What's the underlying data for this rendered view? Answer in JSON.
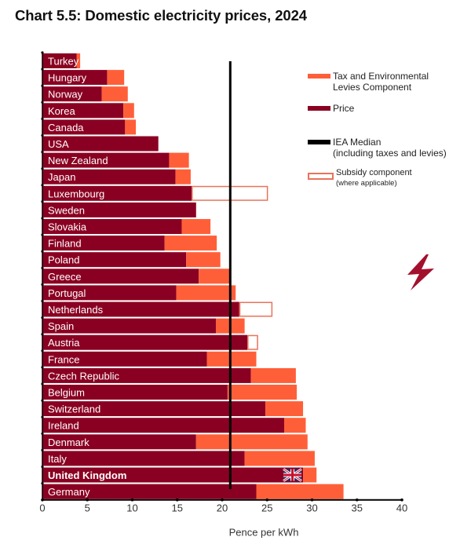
{
  "title": "Chart 5.5: Domestic electricity prices, 2024",
  "colors": {
    "price": "#8a0022",
    "tax": "#ff5f38",
    "subsidy_border": "#e8735a",
    "median": "#000000",
    "bolt": "#a3102e"
  },
  "legend": {
    "tax": "Tax and Environmental",
    "tax_line2": "Levies Component",
    "price": "Price",
    "median": "IEA Median",
    "median_line2": "(including taxes and levies)",
    "subsidy": "Subsidy component",
    "subsidy_line2": "(where applicable)"
  },
  "icons": {
    "bolt": "lightning-bolt-icon",
    "flag": "uk-flag-icon"
  },
  "chart_data": {
    "type": "bar",
    "orientation": "horizontal",
    "stacked": true,
    "title": "Chart 5.5: Domestic electricity prices, 2024",
    "xlabel": "Pence per kWh",
    "ylabel": "",
    "xlim": [
      0,
      40
    ],
    "xticks": [
      0,
      5,
      10,
      15,
      20,
      25,
      30,
      35,
      40
    ],
    "grid": false,
    "legend_position": "top-right",
    "median": 20.9,
    "median_label": "IEA Median (including taxes and levies)",
    "highlight": "United Kingdom",
    "categories": [
      "Turkey",
      "Hungary",
      "Norway",
      "Korea",
      "Canada",
      "USA",
      "New Zealand",
      "Japan",
      "Luxembourg",
      "Sweden",
      "Slovakia",
      "Finland",
      "Poland",
      "Greece",
      "Portugal",
      "Netherlands",
      "Spain",
      "Austria",
      "France",
      "Czech Republic",
      "Belgium",
      "Switzerland",
      "Ireland",
      "Denmark",
      "Italy",
      "United Kingdom",
      "Germany"
    ],
    "series": [
      {
        "name": "Price",
        "values": [
          3.8,
          7.2,
          6.6,
          9.0,
          9.2,
          12.9,
          14.1,
          14.8,
          16.6,
          17.1,
          15.5,
          13.6,
          16.0,
          17.4,
          14.9,
          21.9,
          19.3,
          22.8,
          18.3,
          23.2,
          20.6,
          24.8,
          26.9,
          17.1,
          22.5,
          29.0,
          23.8
        ]
      },
      {
        "name": "Tax and Environmental Levies Component",
        "values": [
          0.4,
          1.9,
          2.9,
          1.2,
          1.2,
          0.0,
          2.2,
          1.7,
          0.0,
          0.0,
          3.2,
          5.8,
          3.8,
          3.4,
          6.6,
          0.0,
          3.2,
          0.0,
          5.5,
          5.0,
          7.7,
          4.2,
          2.4,
          12.4,
          7.8,
          1.5,
          9.7
        ]
      },
      {
        "name": "Subsidy component",
        "values": [
          0,
          0,
          0,
          0,
          0,
          0,
          0,
          0,
          8.5,
          0,
          0,
          0,
          0,
          0,
          0,
          3.7,
          0,
          1.2,
          0,
          0,
          0,
          0,
          0,
          0,
          0,
          0,
          0
        ]
      }
    ]
  }
}
